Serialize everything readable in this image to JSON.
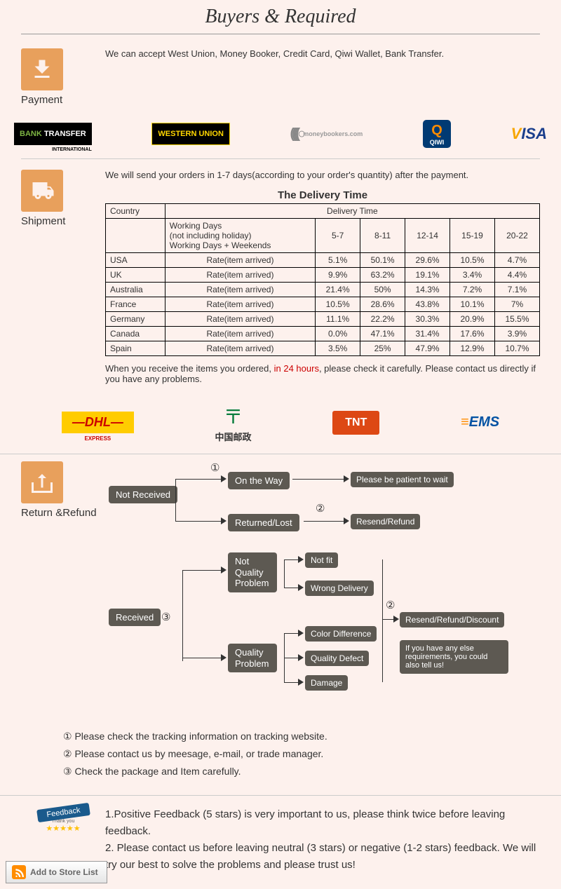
{
  "header_title": "Buyers & Required",
  "payment": {
    "label": "Payment",
    "text": "We can accept West Union, Money Booker, Credit Card, Qiwi Wallet, Bank Transfer.",
    "logos": {
      "bank_transfer": "BANK TRANSFER",
      "bank_sub": "INTERNATIONAL",
      "western_union": "WESTERN UNION",
      "moneybookers": "moneybookers.com",
      "qiwi": "QIWI",
      "visa": "VISA"
    }
  },
  "shipment": {
    "label": "Shipment",
    "intro": "We will send your orders in 1-7 days(according to your order's quantity) after the payment.",
    "table_title": "The Delivery Time",
    "col_country": "Country",
    "col_delivery": "Delivery Time",
    "working_days_header": "Working Days\n(not including holiday)\nWorking Days + Weekends",
    "day_ranges": [
      "5-7",
      "8-11",
      "12-14",
      "15-19",
      "20-22"
    ],
    "rate_label": "Rate(item arrived)",
    "rows": [
      {
        "country": "USA",
        "vals": [
          "5.1%",
          "50.1%",
          "29.6%",
          "10.5%",
          "4.7%"
        ]
      },
      {
        "country": "UK",
        "vals": [
          "9.9%",
          "63.2%",
          "19.1%",
          "3.4%",
          "4.4%"
        ]
      },
      {
        "country": "Australia",
        "vals": [
          "21.4%",
          "50%",
          "14.3%",
          "7.2%",
          "7.1%"
        ]
      },
      {
        "country": "France",
        "vals": [
          "10.5%",
          "28.6%",
          "43.8%",
          "10.1%",
          "7%"
        ]
      },
      {
        "country": "Germany",
        "vals": [
          "11.1%",
          "22.2%",
          "30.3%",
          "20.9%",
          "15.5%"
        ]
      },
      {
        "country": "Canada",
        "vals": [
          "0.0%",
          "47.1%",
          "31.4%",
          "17.6%",
          "3.9%"
        ]
      },
      {
        "country": "Spain",
        "vals": [
          "3.5%",
          "25%",
          "47.9%",
          "12.9%",
          "10.7%"
        ]
      }
    ],
    "warning_pre": "When you receive the items you ordered, ",
    "warning_red": "in 24 hours",
    "warning_post": ", please check it carefully. Please contact us directly if you have any problems.",
    "carriers": {
      "dhl": "DHL",
      "dhl_sub": "EXPRESS",
      "china_post": "中国邮政",
      "tnt": "TNT",
      "ems": "EMS"
    }
  },
  "return": {
    "label": "Return &Refund",
    "nodes": {
      "not_received": "Not Received",
      "received": "Received",
      "on_the_way": "On the Way",
      "returned_lost": "Returned/Lost",
      "not_quality": "Not Quality Problem",
      "quality": "Quality Problem",
      "patient": "Please be patient to wait",
      "resend_refund": "Resend/Refund",
      "not_fit": "Not fit",
      "wrong_delivery": "Wrong Delivery",
      "color_diff": "Color Difference",
      "quality_defect": "Quality Defect",
      "damage": "Damage",
      "resend_discount": "Resend/Refund/Discount",
      "note": "If you have any else requirements, you could also tell us!"
    },
    "circles": {
      "c1": "①",
      "c2": "②",
      "c3": "③"
    },
    "notes": [
      "① Please check the tracking information on tracking website.",
      "② Please contact us by meesage, e-mail, or trade manager.",
      "③ Check the package and Item carefully."
    ]
  },
  "feedback": {
    "label": "Feedback",
    "badge": "Feedback",
    "badge_sub": "Thank you",
    "line1": "1.Positive Feedback (5 stars) is very important to us, please think twice before leaving feedback.",
    "line2": "2. Please contact us before leaving neutral (3 stars) or negative (1-2 stars) feedback. We will try our best to solve the problems and please trust us!"
  },
  "add_store": "Add to Store List",
  "colors": {
    "bg": "#fdf1ed",
    "icon_bg": "#e8a05c",
    "node_bg": "#5d5952",
    "red": "#cc0000"
  }
}
